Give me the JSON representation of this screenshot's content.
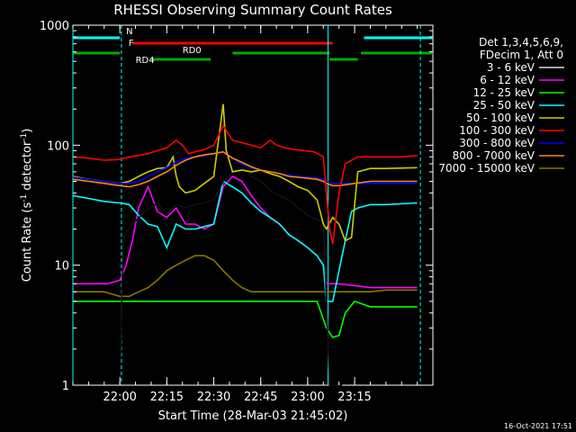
{
  "chart_data": {
    "type": "line",
    "title": "RHESSI Observing Summary Count Rates",
    "xlabel": "Start Time (28-Mar-03 21:45:02)",
    "ylabel_main": "Count Rate (s",
    "ylabel_sup1": "-1",
    "ylabel_mid": " detector",
    "ylabel_sup2": "-1",
    "ylabel_end": ")",
    "footer": "16-Oct-2021 17:51",
    "y_scale": "log",
    "ylim": [
      1,
      1000
    ],
    "xlim_min": [
      -15,
      100
    ],
    "x_ticks": [
      {
        "label": "22:00",
        "min": 0
      },
      {
        "label": "22:15",
        "min": 15
      },
      {
        "label": "22:30",
        "min": 30
      },
      {
        "label": "22:45",
        "min": 45
      },
      {
        "label": "23:00",
        "min": 60
      },
      {
        "label": "23:15",
        "min": 75
      }
    ],
    "y_ticks": [
      {
        "label": "1",
        "v": 1
      },
      {
        "label": "10",
        "v": 10
      },
      {
        "label": "100",
        "v": 100
      },
      {
        "label": "1000",
        "v": 1000
      }
    ],
    "legend_header": [
      "Det 1,3,4,5,6,9,",
      "FDecim 1, Att 0"
    ],
    "flags": {
      "N": {
        "label": "N",
        "color": "#00ffff",
        "intervals": [
          [
            -15,
            0
          ],
          [
            78,
            100
          ]
        ]
      },
      "F": {
        "label": "F",
        "color": "#ff0000",
        "intervals": [
          [
            4,
            68
          ]
        ]
      },
      "RD0": {
        "label": "RD0",
        "color": "#00aa00",
        "intervals": [
          [
            -15,
            0
          ],
          [
            36,
            67
          ],
          [
            77,
            100
          ]
        ]
      },
      "RD4": {
        "label": "RD4",
        "color": "#00aa00",
        "intervals": [
          [
            10,
            29
          ],
          [
            67,
            76
          ]
        ]
      }
    },
    "vlines": [
      {
        "min": -15,
        "color": "#00ffff",
        "style": "solid"
      },
      {
        "min": 0.5,
        "color": "#00ffff",
        "style": "dashed"
      },
      {
        "min": 66.5,
        "color": "#00ffff",
        "style": "solid"
      },
      {
        "min": 96,
        "color": "#00ffff",
        "style": "dashed"
      }
    ],
    "series": [
      {
        "name": "3 - 6 keV",
        "color": "#000000",
        "points": [
          [
            0,
            1
          ],
          [
            1,
            14
          ],
          [
            2,
            19
          ],
          [
            4,
            22
          ],
          [
            8,
            28
          ],
          [
            12,
            33
          ],
          [
            15,
            27
          ],
          [
            18,
            32
          ],
          [
            21,
            30
          ],
          [
            24,
            32
          ],
          [
            27,
            33
          ],
          [
            30,
            35
          ],
          [
            33,
            50
          ],
          [
            36,
            60
          ],
          [
            39,
            65
          ],
          [
            42,
            55
          ],
          [
            45,
            50
          ],
          [
            48,
            42
          ],
          [
            51,
            38
          ],
          [
            54,
            35
          ],
          [
            57,
            30
          ],
          [
            60,
            26
          ],
          [
            63,
            24
          ],
          [
            65,
            23
          ],
          [
            66,
            5
          ],
          [
            67,
            1
          ],
          [
            70,
            1
          ],
          [
            71,
            1
          ]
        ]
      },
      {
        "name": "6 - 12 keV",
        "color": "#ff00ff",
        "points": [
          [
            -15,
            7
          ],
          [
            -10,
            7
          ],
          [
            -4,
            7
          ],
          [
            0,
            7.5
          ],
          [
            2,
            10
          ],
          [
            4,
            16
          ],
          [
            6,
            30
          ],
          [
            9,
            45
          ],
          [
            12,
            28
          ],
          [
            15,
            25
          ],
          [
            18,
            30
          ],
          [
            21,
            22
          ],
          [
            24,
            22
          ],
          [
            27,
            20
          ],
          [
            30,
            22
          ],
          [
            33,
            45
          ],
          [
            36,
            55
          ],
          [
            39,
            50
          ],
          [
            42,
            38
          ],
          [
            45,
            30
          ],
          [
            48,
            25
          ],
          [
            51,
            22
          ],
          [
            54,
            18
          ],
          [
            57,
            16
          ],
          [
            60,
            14
          ],
          [
            63,
            12
          ],
          [
            65,
            10
          ],
          [
            66,
            7
          ],
          [
            70,
            7
          ],
          [
            80,
            6.5
          ],
          [
            95,
            6.5
          ]
        ]
      },
      {
        "name": "12 - 25 keV",
        "color": "#00ff00",
        "points": [
          [
            -15,
            5
          ],
          [
            -10,
            5
          ],
          [
            -4,
            5
          ],
          [
            0,
            5
          ],
          [
            5,
            5
          ],
          [
            10,
            5
          ],
          [
            15,
            5
          ],
          [
            20,
            5
          ],
          [
            25,
            5
          ],
          [
            30,
            5
          ],
          [
            35,
            5
          ],
          [
            40,
            5
          ],
          [
            45,
            5
          ],
          [
            50,
            5
          ],
          [
            55,
            5
          ],
          [
            60,
            5
          ],
          [
            63,
            5
          ],
          [
            66,
            3
          ],
          [
            68,
            2.5
          ],
          [
            70,
            2.6
          ],
          [
            72,
            4
          ],
          [
            75,
            5
          ],
          [
            80,
            4.5
          ],
          [
            88,
            4.5
          ],
          [
            95,
            4.5
          ]
        ]
      },
      {
        "name": "25 - 50 keV",
        "color": "#00ffff",
        "points": [
          [
            -15,
            38
          ],
          [
            -10,
            36
          ],
          [
            -5,
            34
          ],
          [
            0,
            33
          ],
          [
            3,
            32
          ],
          [
            6,
            26
          ],
          [
            9,
            22
          ],
          [
            12,
            21
          ],
          [
            15,
            14
          ],
          [
            18,
            22
          ],
          [
            21,
            20
          ],
          [
            24,
            20
          ],
          [
            27,
            21
          ],
          [
            30,
            22
          ],
          [
            33,
            50
          ],
          [
            36,
            45
          ],
          [
            39,
            40
          ],
          [
            42,
            33
          ],
          [
            45,
            28
          ],
          [
            48,
            25
          ],
          [
            51,
            22
          ],
          [
            54,
            18
          ],
          [
            57,
            16
          ],
          [
            60,
            14
          ],
          [
            63,
            12
          ],
          [
            65,
            10
          ],
          [
            66,
            5
          ],
          [
            68,
            5
          ],
          [
            70,
            9
          ],
          [
            72,
            16
          ],
          [
            74,
            28
          ],
          [
            76,
            30
          ],
          [
            80,
            32
          ],
          [
            85,
            32
          ],
          [
            95,
            33
          ]
        ]
      },
      {
        "name": "50 - 100 keV",
        "color": "#cccc00",
        "points": [
          [
            -15,
            55
          ],
          [
            -10,
            52
          ],
          [
            -5,
            50
          ],
          [
            0,
            48
          ],
          [
            3,
            50
          ],
          [
            6,
            55
          ],
          [
            9,
            60
          ],
          [
            12,
            64
          ],
          [
            15,
            65
          ],
          [
            17,
            80
          ],
          [
            18,
            55
          ],
          [
            19,
            45
          ],
          [
            21,
            40
          ],
          [
            24,
            42
          ],
          [
            27,
            48
          ],
          [
            30,
            55
          ],
          [
            33,
            220
          ],
          [
            34,
            90
          ],
          [
            36,
            60
          ],
          [
            39,
            62
          ],
          [
            42,
            60
          ],
          [
            45,
            62
          ],
          [
            48,
            58
          ],
          [
            51,
            55
          ],
          [
            54,
            50
          ],
          [
            57,
            45
          ],
          [
            60,
            42
          ],
          [
            63,
            35
          ],
          [
            65,
            22
          ],
          [
            66,
            20
          ],
          [
            68,
            25
          ],
          [
            70,
            22
          ],
          [
            72,
            16
          ],
          [
            74,
            17
          ],
          [
            76,
            60
          ],
          [
            80,
            64
          ],
          [
            85,
            64
          ],
          [
            95,
            65
          ]
        ]
      },
      {
        "name": "100 - 300 keV",
        "color": "#ff0000",
        "points": [
          [
            -15,
            80
          ],
          [
            -10,
            78
          ],
          [
            -5,
            75
          ],
          [
            0,
            76
          ],
          [
            3,
            80
          ],
          [
            6,
            82
          ],
          [
            9,
            85
          ],
          [
            12,
            90
          ],
          [
            15,
            95
          ],
          [
            18,
            110
          ],
          [
            20,
            100
          ],
          [
            22,
            85
          ],
          [
            24,
            88
          ],
          [
            27,
            92
          ],
          [
            30,
            100
          ],
          [
            33,
            145
          ],
          [
            36,
            110
          ],
          [
            39,
            105
          ],
          [
            42,
            100
          ],
          [
            45,
            95
          ],
          [
            48,
            110
          ],
          [
            50,
            100
          ],
          [
            53,
            95
          ],
          [
            56,
            92
          ],
          [
            59,
            90
          ],
          [
            62,
            88
          ],
          [
            65,
            80
          ],
          [
            66,
            40
          ],
          [
            67,
            20
          ],
          [
            68,
            15
          ],
          [
            70,
            40
          ],
          [
            72,
            70
          ],
          [
            74,
            75
          ],
          [
            76,
            80
          ],
          [
            80,
            80
          ],
          [
            90,
            80
          ],
          [
            95,
            82
          ]
        ]
      },
      {
        "name": "300 - 800 keV",
        "color": "#0000ff",
        "points": [
          [
            -15,
            54
          ],
          [
            -10,
            52
          ],
          [
            -5,
            50
          ],
          [
            0,
            48
          ],
          [
            3,
            48
          ],
          [
            6,
            50
          ],
          [
            9,
            55
          ],
          [
            12,
            60
          ],
          [
            15,
            65
          ],
          [
            18,
            72
          ],
          [
            21,
            78
          ],
          [
            24,
            80
          ],
          [
            27,
            82
          ],
          [
            30,
            85
          ],
          [
            33,
            88
          ],
          [
            36,
            78
          ],
          [
            39,
            70
          ],
          [
            42,
            65
          ],
          [
            45,
            62
          ],
          [
            48,
            60
          ],
          [
            51,
            58
          ],
          [
            54,
            56
          ],
          [
            57,
            55
          ],
          [
            60,
            54
          ],
          [
            63,
            53
          ],
          [
            65,
            52
          ],
          [
            66,
            50
          ],
          [
            68,
            48
          ],
          [
            70,
            48
          ],
          [
            75,
            48
          ],
          [
            80,
            48
          ],
          [
            85,
            48
          ],
          [
            95,
            48
          ]
        ]
      },
      {
        "name": "800 - 7000 keV",
        "color": "#ff8800",
        "points": [
          [
            -15,
            52
          ],
          [
            -10,
            50
          ],
          [
            -5,
            48
          ],
          [
            0,
            46
          ],
          [
            3,
            45
          ],
          [
            6,
            47
          ],
          [
            9,
            50
          ],
          [
            12,
            55
          ],
          [
            15,
            60
          ],
          [
            18,
            68
          ],
          [
            21,
            75
          ],
          [
            24,
            80
          ],
          [
            27,
            83
          ],
          [
            30,
            85
          ],
          [
            33,
            88
          ],
          [
            36,
            78
          ],
          [
            39,
            72
          ],
          [
            42,
            66
          ],
          [
            45,
            62
          ],
          [
            48,
            60
          ],
          [
            51,
            58
          ],
          [
            54,
            55
          ],
          [
            57,
            54
          ],
          [
            60,
            53
          ],
          [
            63,
            52
          ],
          [
            65,
            50
          ],
          [
            66,
            48
          ],
          [
            68,
            46
          ],
          [
            70,
            46
          ],
          [
            75,
            48
          ],
          [
            80,
            50
          ],
          [
            85,
            50
          ],
          [
            95,
            50
          ]
        ]
      },
      {
        "name": "7000 - 15000 keV",
        "color": "#887700",
        "points": [
          [
            -15,
            6
          ],
          [
            -10,
            6
          ],
          [
            -5,
            6
          ],
          [
            0,
            5.5
          ],
          [
            3,
            5.5
          ],
          [
            6,
            6
          ],
          [
            9,
            6.5
          ],
          [
            12,
            7.5
          ],
          [
            15,
            9
          ],
          [
            18,
            10
          ],
          [
            21,
            11
          ],
          [
            24,
            12
          ],
          [
            27,
            12
          ],
          [
            30,
            11
          ],
          [
            33,
            9
          ],
          [
            36,
            7.5
          ],
          [
            39,
            6.5
          ],
          [
            42,
            6
          ],
          [
            45,
            6
          ],
          [
            48,
            6
          ],
          [
            51,
            6
          ],
          [
            54,
            6
          ],
          [
            57,
            6
          ],
          [
            60,
            6
          ],
          [
            63,
            6
          ],
          [
            66,
            6
          ],
          [
            70,
            6
          ],
          [
            75,
            6
          ],
          [
            80,
            6
          ],
          [
            85,
            6.2
          ],
          [
            95,
            6.2
          ]
        ]
      }
    ]
  }
}
